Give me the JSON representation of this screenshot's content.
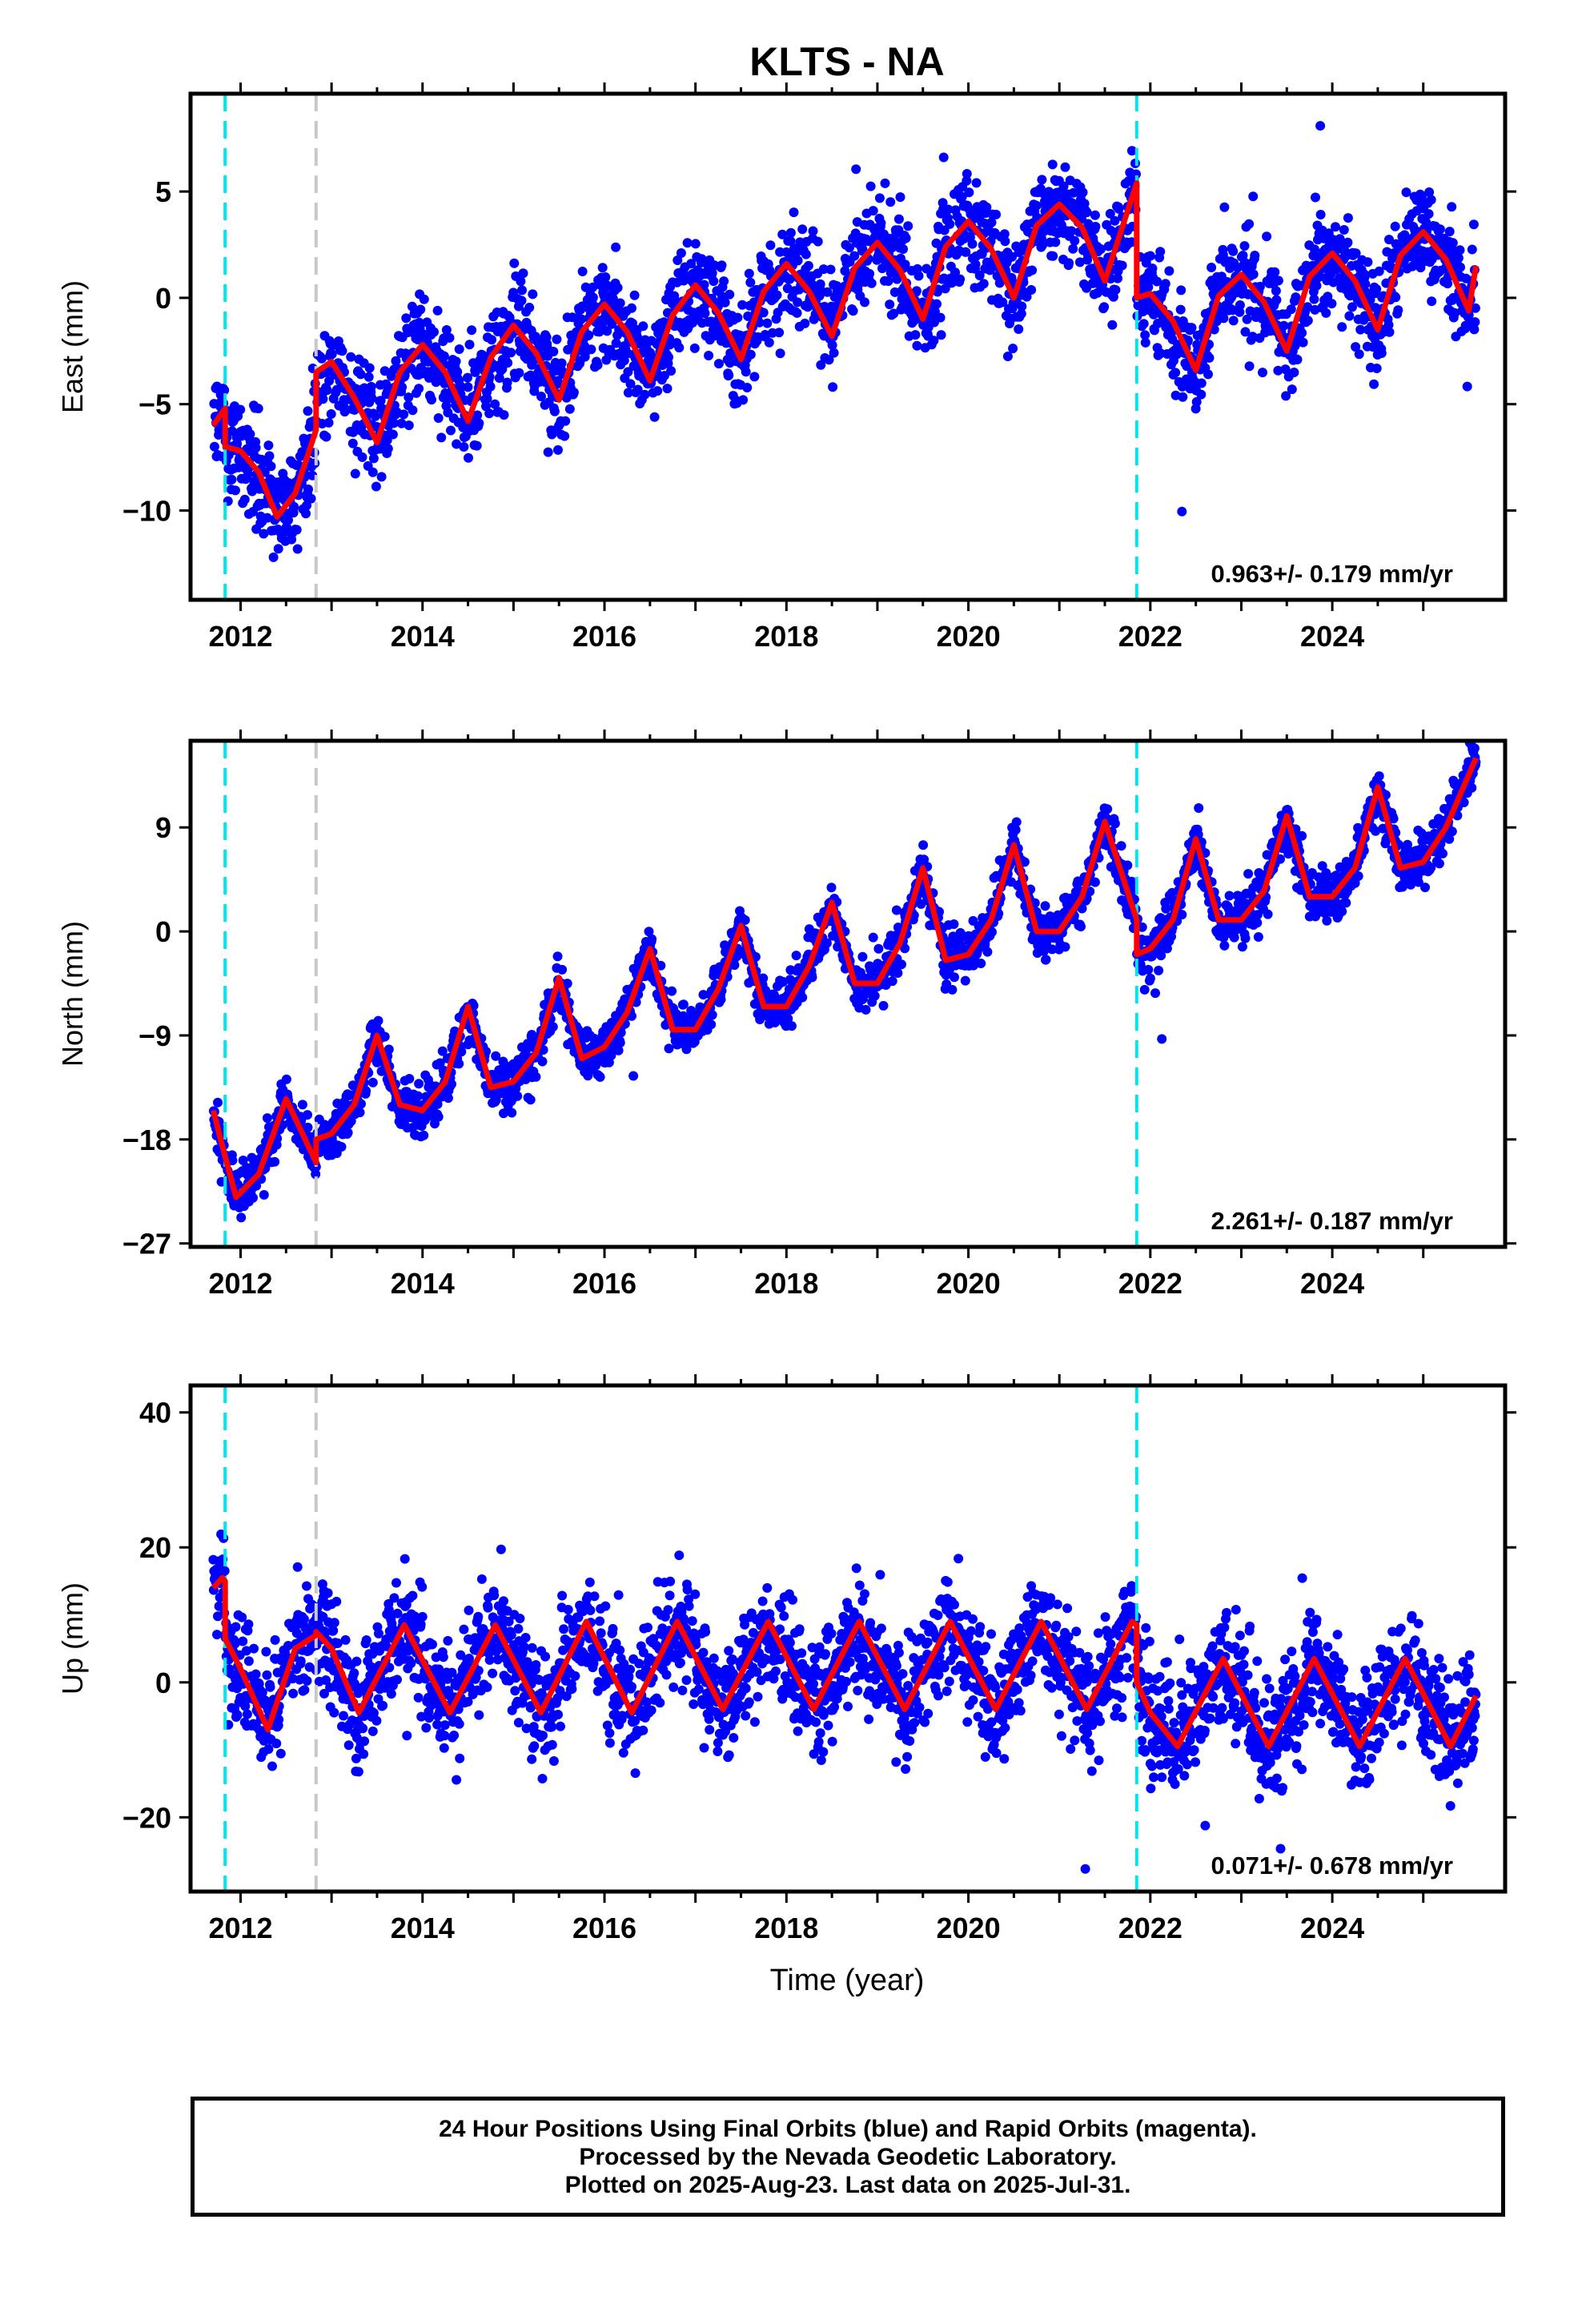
{
  "title": "KLTS - NA",
  "xlabel": "Time (year)",
  "footer": {
    "line1": "24 Hour Positions Using Final Orbits (blue) and Rapid Orbits (magenta).",
    "line2": "Processed by the Nevada Geodetic Laboratory.",
    "line3": "Plotted on 2025-Aug-23. Last data on 2025-Jul-31."
  },
  "colors": {
    "points": "#0000ff",
    "fit": "#ff0000",
    "antenna_change": "#00e5ee",
    "equipment_change": "#c8c8c8"
  },
  "chart_data": [
    {
      "type": "scatter",
      "title": "",
      "xlabel": "",
      "ylabel": "East (mm)",
      "xlim": [
        2011.45,
        2025.9
      ],
      "ylim": [
        -14.2,
        9.6
      ],
      "xticks": [
        2012,
        2014,
        2016,
        2018,
        2020,
        2022,
        2024
      ],
      "yticks": [
        -10,
        -5,
        0,
        5
      ],
      "rate_label": "0.963+/- 0.179 mm/yr",
      "grid": false,
      "vlines": [
        {
          "x": 2011.83,
          "color": "cyan"
        },
        {
          "x": 2012.83,
          "color": "gray"
        },
        {
          "x": 2021.85,
          "color": "cyan"
        }
      ],
      "fit": {
        "x": [
          2011.7,
          2011.83,
          2011.83,
          2012.0,
          2012.2,
          2012.4,
          2012.6,
          2012.83,
          2012.83,
          2013.0,
          2013.25,
          2013.5,
          2013.75,
          2014.0,
          2014.25,
          2014.5,
          2014.75,
          2015.0,
          2015.25,
          2015.5,
          2015.75,
          2016.0,
          2016.25,
          2016.5,
          2016.75,
          2017.0,
          2017.25,
          2017.5,
          2017.75,
          2018.0,
          2018.25,
          2018.5,
          2018.75,
          2019.0,
          2019.25,
          2019.5,
          2019.75,
          2020.0,
          2020.25,
          2020.5,
          2020.75,
          2021.0,
          2021.25,
          2021.5,
          2021.85,
          2021.85,
          2022.0,
          2022.25,
          2022.5,
          2022.75,
          2023.0,
          2023.25,
          2023.5,
          2023.75,
          2024.0,
          2024.25,
          2024.5,
          2024.75,
          2025.0,
          2025.25,
          2025.5,
          2025.58
        ],
        "y": [
          -6.0,
          -5.2,
          -7.0,
          -7.2,
          -8.2,
          -10.3,
          -9.2,
          -6.2,
          -3.5,
          -3.0,
          -4.7,
          -6.8,
          -3.5,
          -2.2,
          -3.5,
          -5.8,
          -2.8,
          -1.3,
          -2.6,
          -4.8,
          -1.6,
          -0.3,
          -1.6,
          -3.9,
          -0.8,
          0.6,
          -0.7,
          -2.9,
          0.3,
          1.6,
          0.3,
          -1.8,
          1.4,
          2.6,
          1.3,
          -1.0,
          2.4,
          3.6,
          2.3,
          0.0,
          3.4,
          4.4,
          3.3,
          0.8,
          5.4,
          0.0,
          0.2,
          -1.1,
          -3.4,
          0.1,
          1.1,
          -0.2,
          -2.5,
          1.0,
          2.1,
          0.8,
          -1.5,
          2.0,
          3.1,
          1.8,
          -0.6,
          1.5
        ]
      },
      "points": {
        "rate": 0.963,
        "amp": 2.2,
        "noise": 1.2,
        "start": 2011.7,
        "end": 2025.58
      }
    },
    {
      "type": "scatter",
      "title": "",
      "xlabel": "",
      "ylabel": "North (mm)",
      "xlim": [
        2011.45,
        2025.9
      ],
      "ylim": [
        -27.3,
        16.5
      ],
      "xticks": [
        2012,
        2014,
        2016,
        2018,
        2020,
        2022,
        2024
      ],
      "yticks": [
        -27,
        -18,
        -9,
        0,
        9
      ],
      "rate_label": "2.261+/- 0.187 mm/yr",
      "grid": false,
      "vlines": [
        {
          "x": 2011.83,
          "color": "cyan"
        },
        {
          "x": 2012.83,
          "color": "gray"
        },
        {
          "x": 2021.85,
          "color": "cyan"
        }
      ],
      "fit": {
        "x": [
          2011.7,
          2011.83,
          2011.95,
          2012.2,
          2012.5,
          2012.83,
          2012.83,
          2013.0,
          2013.25,
          2013.5,
          2013.75,
          2014.0,
          2014.25,
          2014.5,
          2014.75,
          2015.0,
          2015.25,
          2015.5,
          2015.75,
          2016.0,
          2016.25,
          2016.5,
          2016.75,
          2017.0,
          2017.25,
          2017.5,
          2017.75,
          2018.0,
          2018.25,
          2018.5,
          2018.75,
          2019.0,
          2019.25,
          2019.5,
          2019.75,
          2020.0,
          2020.25,
          2020.5,
          2020.75,
          2021.0,
          2021.25,
          2021.5,
          2021.85,
          2021.85,
          2022.0,
          2022.25,
          2022.5,
          2022.75,
          2023.0,
          2023.25,
          2023.5,
          2023.75,
          2024.0,
          2024.25,
          2024.5,
          2024.75,
          2025.0,
          2025.25,
          2025.58
        ],
        "y": [
          -15.5,
          -19.5,
          -23.0,
          -21.0,
          -14.5,
          -20.0,
          -18.0,
          -17.5,
          -15.0,
          -9.0,
          -15.0,
          -15.5,
          -13.0,
          -6.5,
          -13.5,
          -13.0,
          -10.5,
          -4.0,
          -11.0,
          -10.0,
          -7.0,
          -1.5,
          -8.5,
          -8.5,
          -5.0,
          0.5,
          -6.5,
          -6.5,
          -3.0,
          2.5,
          -4.5,
          -4.5,
          -1.0,
          5.5,
          -2.5,
          -2.0,
          1.0,
          7.5,
          0.0,
          0.0,
          3.0,
          9.5,
          1.0,
          -2.0,
          -1.5,
          1.0,
          8.0,
          1.0,
          1.0,
          3.5,
          10.0,
          3.0,
          3.0,
          5.5,
          12.5,
          5.5,
          6.0,
          9.0,
          15.0
        ]
      },
      "points": {
        "rate": 2.261,
        "amp": 3.8,
        "noise": 1.1,
        "start": 2011.7,
        "end": 2025.58
      }
    },
    {
      "type": "scatter",
      "title": "",
      "xlabel": "Time (year)",
      "ylabel": "Up (mm)",
      "xlim": [
        2011.45,
        2025.9
      ],
      "ylim": [
        -31,
        44
      ],
      "xticks": [
        2012,
        2014,
        2016,
        2018,
        2020,
        2022,
        2024
      ],
      "yticks": [
        -20,
        0,
        20,
        40
      ],
      "rate_label": "0.071+/- 0.678 mm/yr",
      "grid": false,
      "vlines": [
        {
          "x": 2011.83,
          "color": "cyan"
        },
        {
          "x": 2012.83,
          "color": "gray"
        },
        {
          "x": 2021.85,
          "color": "cyan"
        }
      ],
      "fit": {
        "x": [
          2011.7,
          2011.8,
          2011.83,
          2011.83,
          2012.0,
          2012.3,
          2012.6,
          2012.83,
          2012.83,
          2013.0,
          2013.3,
          2013.8,
          2014.3,
          2014.8,
          2015.3,
          2015.8,
          2016.3,
          2016.8,
          2017.3,
          2017.8,
          2018.3,
          2018.8,
          2019.3,
          2019.8,
          2020.3,
          2020.8,
          2021.3,
          2021.8,
          2021.85,
          2021.85,
          2022.0,
          2022.3,
          2022.8,
          2023.3,
          2023.8,
          2024.3,
          2024.8,
          2025.3,
          2025.58
        ],
        "y": [
          14.0,
          15.5,
          15.0,
          6.5,
          2.0,
          -7.0,
          5.0,
          7.0,
          7.5,
          5.0,
          -4.5,
          8.5,
          -4.5,
          8.5,
          -4.5,
          9.0,
          -4.5,
          9.0,
          -4.0,
          9.0,
          -4.0,
          9.0,
          -4.0,
          9.0,
          -4.0,
          9.0,
          -4.0,
          9.0,
          8.5,
          0.0,
          -4.5,
          -9.5,
          3.5,
          -9.5,
          3.5,
          -9.5,
          3.5,
          -9.5,
          -2.0
        ]
      },
      "points": {
        "rate": 0.071,
        "amp": 7.0,
        "noise": 4.2,
        "start": 2011.7,
        "end": 2025.58
      }
    }
  ]
}
